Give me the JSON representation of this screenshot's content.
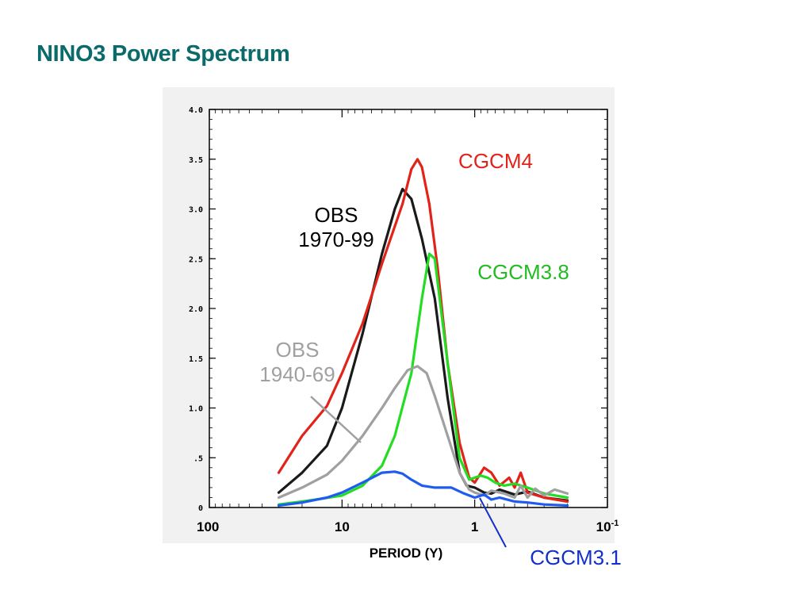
{
  "slide": {
    "title": "NINO3 Power Spectrum"
  },
  "chart_data": {
    "type": "line",
    "title": "",
    "xlabel": "PERIOD (Y)",
    "ylabel": "",
    "x_scale": "log",
    "x_reversed": true,
    "xlim": [
      100,
      0.1
    ],
    "ylim": [
      0,
      4.0
    ],
    "grid": false,
    "x_ticks": [
      {
        "value": 100,
        "label": "100"
      },
      {
        "value": 10,
        "label": "10"
      },
      {
        "value": 1,
        "label": "1"
      },
      {
        "value": 0.1,
        "label": "10",
        "sup": "-1"
      }
    ],
    "y_ticks": [
      {
        "value": 0,
        "label": "0"
      },
      {
        "value": 0.5,
        "label": ".5"
      },
      {
        "value": 1.0,
        "label": "1.0"
      },
      {
        "value": 1.5,
        "label": "1.5"
      },
      {
        "value": 2.0,
        "label": "2.0"
      },
      {
        "value": 2.5,
        "label": "2.5"
      },
      {
        "value": 3.0,
        "label": "3.0"
      },
      {
        "value": 3.5,
        "label": "3.5"
      },
      {
        "value": 4.0,
        "label": "4.0"
      }
    ],
    "series": [
      {
        "name": "OBS 1970-99",
        "color": "#1a1a1a",
        "x": [
          30,
          20,
          13,
          10,
          7,
          5,
          4,
          3.5,
          3,
          2.5,
          2,
          1.6,
          1.3,
          1.15,
          1.0,
          0.85,
          0.75,
          0.65,
          0.5,
          0.4,
          0.3,
          0.2
        ],
        "y": [
          0.15,
          0.35,
          0.62,
          1.0,
          1.75,
          2.55,
          3.0,
          3.2,
          3.1,
          2.7,
          2.1,
          1.1,
          0.35,
          0.22,
          0.2,
          0.15,
          0.14,
          0.18,
          0.13,
          0.16,
          0.1,
          0.07
        ]
      },
      {
        "name": "CGCM4",
        "color": "#e2231a",
        "x": [
          30,
          20,
          13,
          10,
          7,
          5,
          3.5,
          3,
          2.7,
          2.5,
          2.2,
          1.9,
          1.6,
          1.3,
          1.1,
          1.0,
          0.85,
          0.75,
          0.65,
          0.55,
          0.5,
          0.45,
          0.4,
          0.3,
          0.2
        ],
        "y": [
          0.35,
          0.72,
          1.02,
          1.35,
          1.85,
          2.45,
          3.05,
          3.4,
          3.5,
          3.42,
          3.05,
          2.4,
          1.45,
          0.65,
          0.3,
          0.25,
          0.4,
          0.35,
          0.22,
          0.3,
          0.2,
          0.35,
          0.15,
          0.1,
          0.06
        ]
      },
      {
        "name": "CGCM3.8",
        "color": "#22dd22",
        "x": [
          30,
          20,
          10,
          7,
          5,
          4,
          3,
          2.5,
          2.2,
          2.0,
          1.8,
          1.5,
          1.3,
          1.1,
          1.0,
          0.9,
          0.8,
          0.7,
          0.6,
          0.5,
          0.4,
          0.3,
          0.2
        ],
        "y": [
          0.03,
          0.06,
          0.12,
          0.22,
          0.42,
          0.72,
          1.35,
          2.1,
          2.55,
          2.5,
          2.0,
          1.15,
          0.5,
          0.28,
          0.3,
          0.32,
          0.3,
          0.25,
          0.22,
          0.24,
          0.2,
          0.14,
          0.1
        ]
      },
      {
        "name": "OBS 1940-69",
        "color": "#a0a0a0",
        "x": [
          30,
          20,
          13,
          10,
          7,
          5,
          4,
          3.2,
          2.7,
          2.3,
          2.0,
          1.6,
          1.3,
          1.1,
          1.0,
          0.85,
          0.75,
          0.6,
          0.5,
          0.45,
          0.4,
          0.35,
          0.3,
          0.25,
          0.2
        ],
        "y": [
          0.1,
          0.2,
          0.33,
          0.47,
          0.72,
          1.0,
          1.2,
          1.38,
          1.42,
          1.35,
          1.12,
          0.72,
          0.35,
          0.18,
          0.15,
          0.12,
          0.17,
          0.14,
          0.1,
          0.22,
          0.1,
          0.19,
          0.12,
          0.18,
          0.14
        ]
      },
      {
        "name": "CGCM3.1",
        "color": "#1e5cf0",
        "x": [
          30,
          20,
          13,
          10,
          7,
          5,
          4,
          3.5,
          3,
          2.5,
          2,
          1.5,
          1.2,
          1.0,
          0.85,
          0.75,
          0.65,
          0.5,
          0.4,
          0.3,
          0.2
        ],
        "y": [
          0.02,
          0.05,
          0.1,
          0.15,
          0.25,
          0.35,
          0.36,
          0.34,
          0.28,
          0.22,
          0.2,
          0.2,
          0.14,
          0.1,
          0.13,
          0.08,
          0.1,
          0.06,
          0.05,
          0.03,
          0.02
        ]
      }
    ],
    "annotations": [
      {
        "id": "cgcm4",
        "lines": [
          "CGCM4"
        ],
        "color": "#e2231a"
      },
      {
        "id": "obs7099",
        "lines": [
          "OBS",
          "1970-99"
        ],
        "color": "#000000"
      },
      {
        "id": "cgcm38",
        "lines": [
          "CGCM3.8"
        ],
        "color": "#22bb22"
      },
      {
        "id": "obs4069",
        "lines": [
          "OBS",
          "1940-69"
        ],
        "color": "#a0a0a0"
      },
      {
        "id": "cgcm31",
        "lines": [
          "CGCM3.1"
        ],
        "color": "#1230c8"
      }
    ]
  }
}
